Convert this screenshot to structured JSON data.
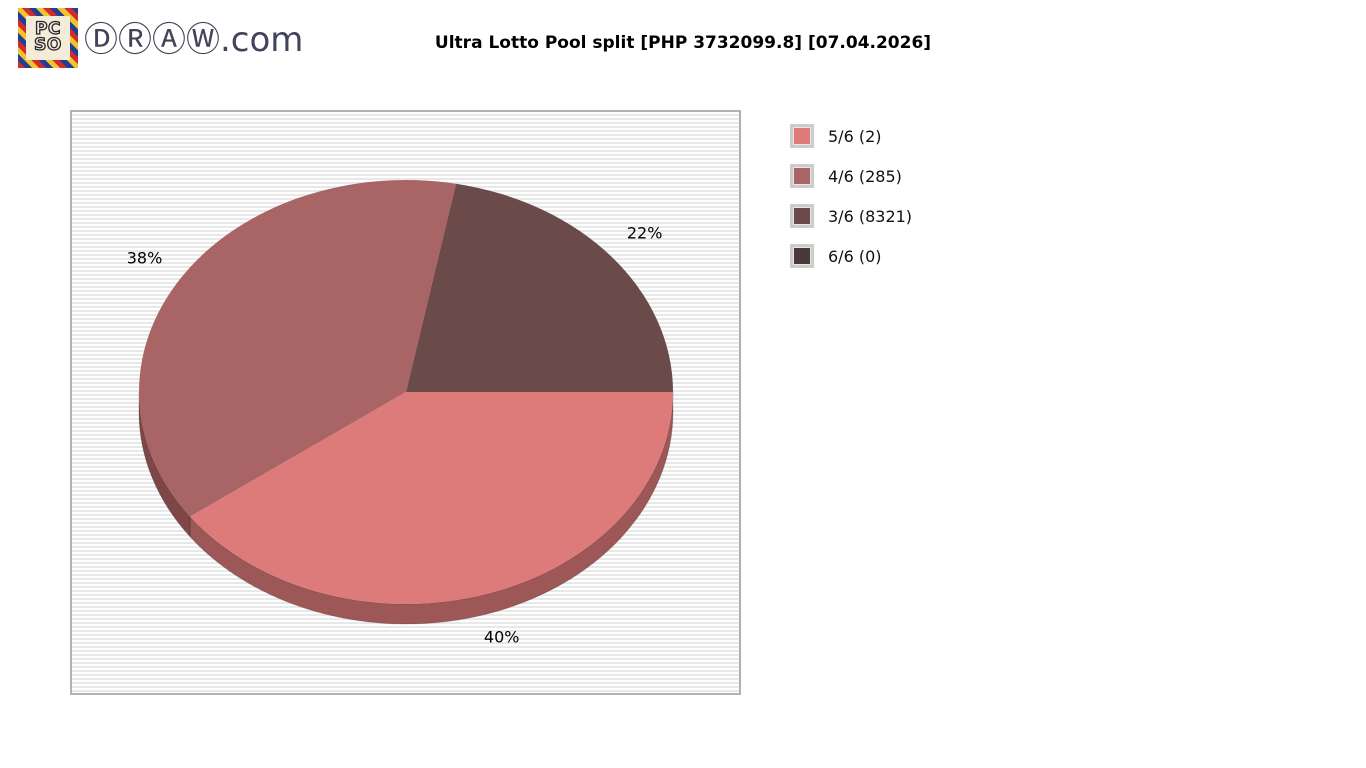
{
  "header": {
    "logo": {
      "stamp_line1": "PC",
      "stamp_line2": "SO",
      "site_text": "ⒹⓇⒶⓌ.com"
    }
  },
  "chart_data": {
    "type": "pie",
    "title": "Ultra Lotto Pool split [PHP 3732099.8] [07.04.2026]",
    "pool_amount_php": "3732099.8",
    "draw_date": "07.04.2026",
    "style": "3d",
    "start_angle_deg": 0,
    "direction": "clockwise",
    "legend_position": "right",
    "series": [
      {
        "name": "5/6",
        "winners": 2,
        "percent": 40,
        "pct_label": "40%",
        "label": "5/6 (2)",
        "color": "#dd7b7b",
        "side_color": "#9d5757"
      },
      {
        "name": "4/6",
        "winners": 285,
        "percent": 38,
        "pct_label": "38%",
        "label": "4/6 (285)",
        "color": "#a96565",
        "side_color": "#7e4646"
      },
      {
        "name": "3/6",
        "winners": 8321,
        "percent": 22,
        "pct_label": "22%",
        "label": "3/6 (8321)",
        "color": "#6b4a4a",
        "side_color": "#4c3434"
      },
      {
        "name": "6/6",
        "winners": 0,
        "percent": 0,
        "pct_label": "0%",
        "label": "6/6 (0)",
        "color": "#493a3a",
        "side_color": "#332828"
      }
    ]
  },
  "colors": {
    "panel_border": "#b1b1b1",
    "stripe_light": "#ffffff",
    "stripe_dark": "#e8e8e8",
    "logo_text": "#42425a",
    "title_text": "#000000"
  }
}
